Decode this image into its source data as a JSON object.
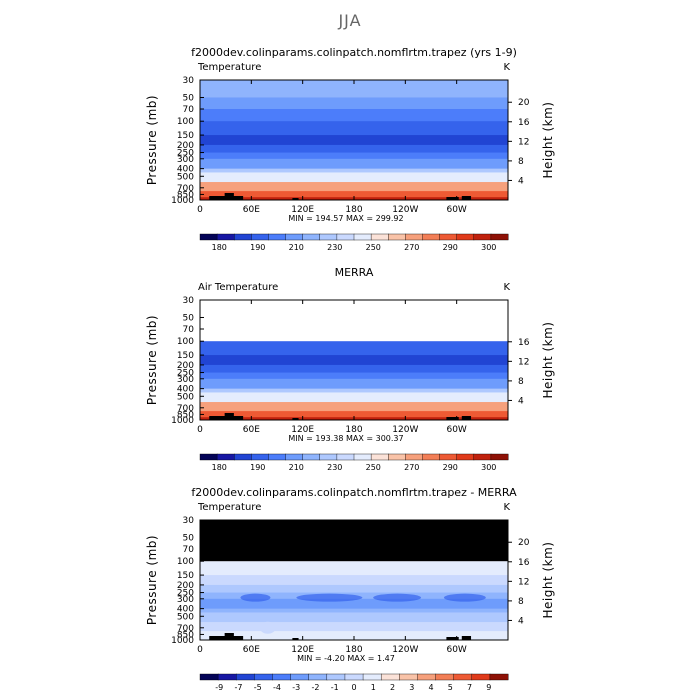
{
  "suptitle": "JJA",
  "colors": {
    "temperature": [
      "#040457",
      "#1717a3",
      "#2144d3",
      "#3563ec",
      "#4c7dfa",
      "#6e9cfc",
      "#8fb4fd",
      "#aec8fe",
      "#cad9fe",
      "#e4ecfd",
      "#fbe2d8",
      "#f9c3a8",
      "#f6a07c",
      "#f27e56",
      "#ee5a34",
      "#e03a1a",
      "#c0210d",
      "#8e1106"
    ],
    "difference": [
      "#040457",
      "#1717a3",
      "#2144d3",
      "#3563ec",
      "#4c7dfa",
      "#6e9cfc",
      "#8fb4fd",
      "#aec8fe",
      "#cad9fe",
      "#e4ecfd",
      "#fbe2d8",
      "#f9c3a8",
      "#f6a07c",
      "#f27e56",
      "#ee5a34",
      "#e03a1a",
      "#8e1106"
    ],
    "missing": "#000000"
  },
  "chart_data": [
    {
      "type": "heatmap",
      "title": "f2000dev.colinparams.colinpatch.nomflrtm.trapez (yrs 1-9)",
      "corner_left": "Temperature",
      "corner_right": "K",
      "ylabel": "Pressure (mb)",
      "ylabel_right": "Height (km)",
      "x_ticks": [
        "0",
        "60E",
        "120E",
        "180",
        "120W",
        "60W"
      ],
      "y_ticks": [
        "30",
        "50",
        "70",
        "100",
        "150",
        "200",
        "250",
        "300",
        "400",
        "500",
        "700",
        "850",
        "1000"
      ],
      "height_ticks": [
        "20",
        "16",
        "12",
        "8",
        "4"
      ],
      "stats": "MIN = 194.57   MAX = 299.92",
      "colorbar_labels": [
        "180",
        "190",
        "210",
        "230",
        "250",
        "270",
        "290",
        "300"
      ],
      "missing_top_mb": null,
      "profile_class_by_level": [
        6,
        5,
        4,
        3,
        2,
        3,
        4,
        5,
        7,
        9,
        12,
        14,
        16
      ]
    },
    {
      "type": "heatmap",
      "title": "MERRA",
      "corner_left": "Air Temperature",
      "corner_right": "K",
      "ylabel": "Pressure (mb)",
      "ylabel_right": "Height (km)",
      "x_ticks": [
        "0",
        "60E",
        "120E",
        "180",
        "120W",
        "60W"
      ],
      "y_ticks": [
        "30",
        "50",
        "70",
        "100",
        "150",
        "200",
        "250",
        "300",
        "400",
        "500",
        "700",
        "850",
        "1000"
      ],
      "height_ticks": [
        "16",
        "12",
        "8",
        "4"
      ],
      "stats": "MIN = 193.38   MAX = 300.37",
      "colorbar_labels": [
        "180",
        "190",
        "210",
        "230",
        "250",
        "270",
        "290",
        "300"
      ],
      "missing_top_mb": null,
      "profile_class_by_level": [
        -1,
        -1,
        -1,
        3,
        2,
        3,
        4,
        5,
        7,
        9,
        12,
        14,
        16
      ]
    },
    {
      "type": "heatmap",
      "title": "f2000dev.colinparams.colinpatch.nomflrtm.trapez - MERRA",
      "corner_left": "Temperature",
      "corner_right": "K",
      "ylabel": "Pressure (mb)",
      "ylabel_right": "Height (km)",
      "x_ticks": [
        "0",
        "60E",
        "120E",
        "180",
        "120W",
        "60W"
      ],
      "y_ticks": [
        "30",
        "50",
        "70",
        "100",
        "150",
        "200",
        "250",
        "300",
        "400",
        "500",
        "700",
        "850",
        "1000"
      ],
      "height_ticks": [
        "20",
        "16",
        "12",
        "8",
        "4"
      ],
      "stats": "MIN =   -4.20   MAX =    1.47",
      "colorbar_labels": [
        "-9",
        "-7",
        "-5",
        "-4",
        "-3",
        "-2",
        "-1",
        "0",
        "1",
        "2",
        "3",
        "4",
        "5",
        "7",
        "9"
      ],
      "missing_top_mb": 100,
      "profile_class_by_level": [
        -1,
        -1,
        -1,
        9,
        8,
        7,
        6,
        5,
        6,
        7,
        8,
        9,
        9
      ]
    }
  ]
}
